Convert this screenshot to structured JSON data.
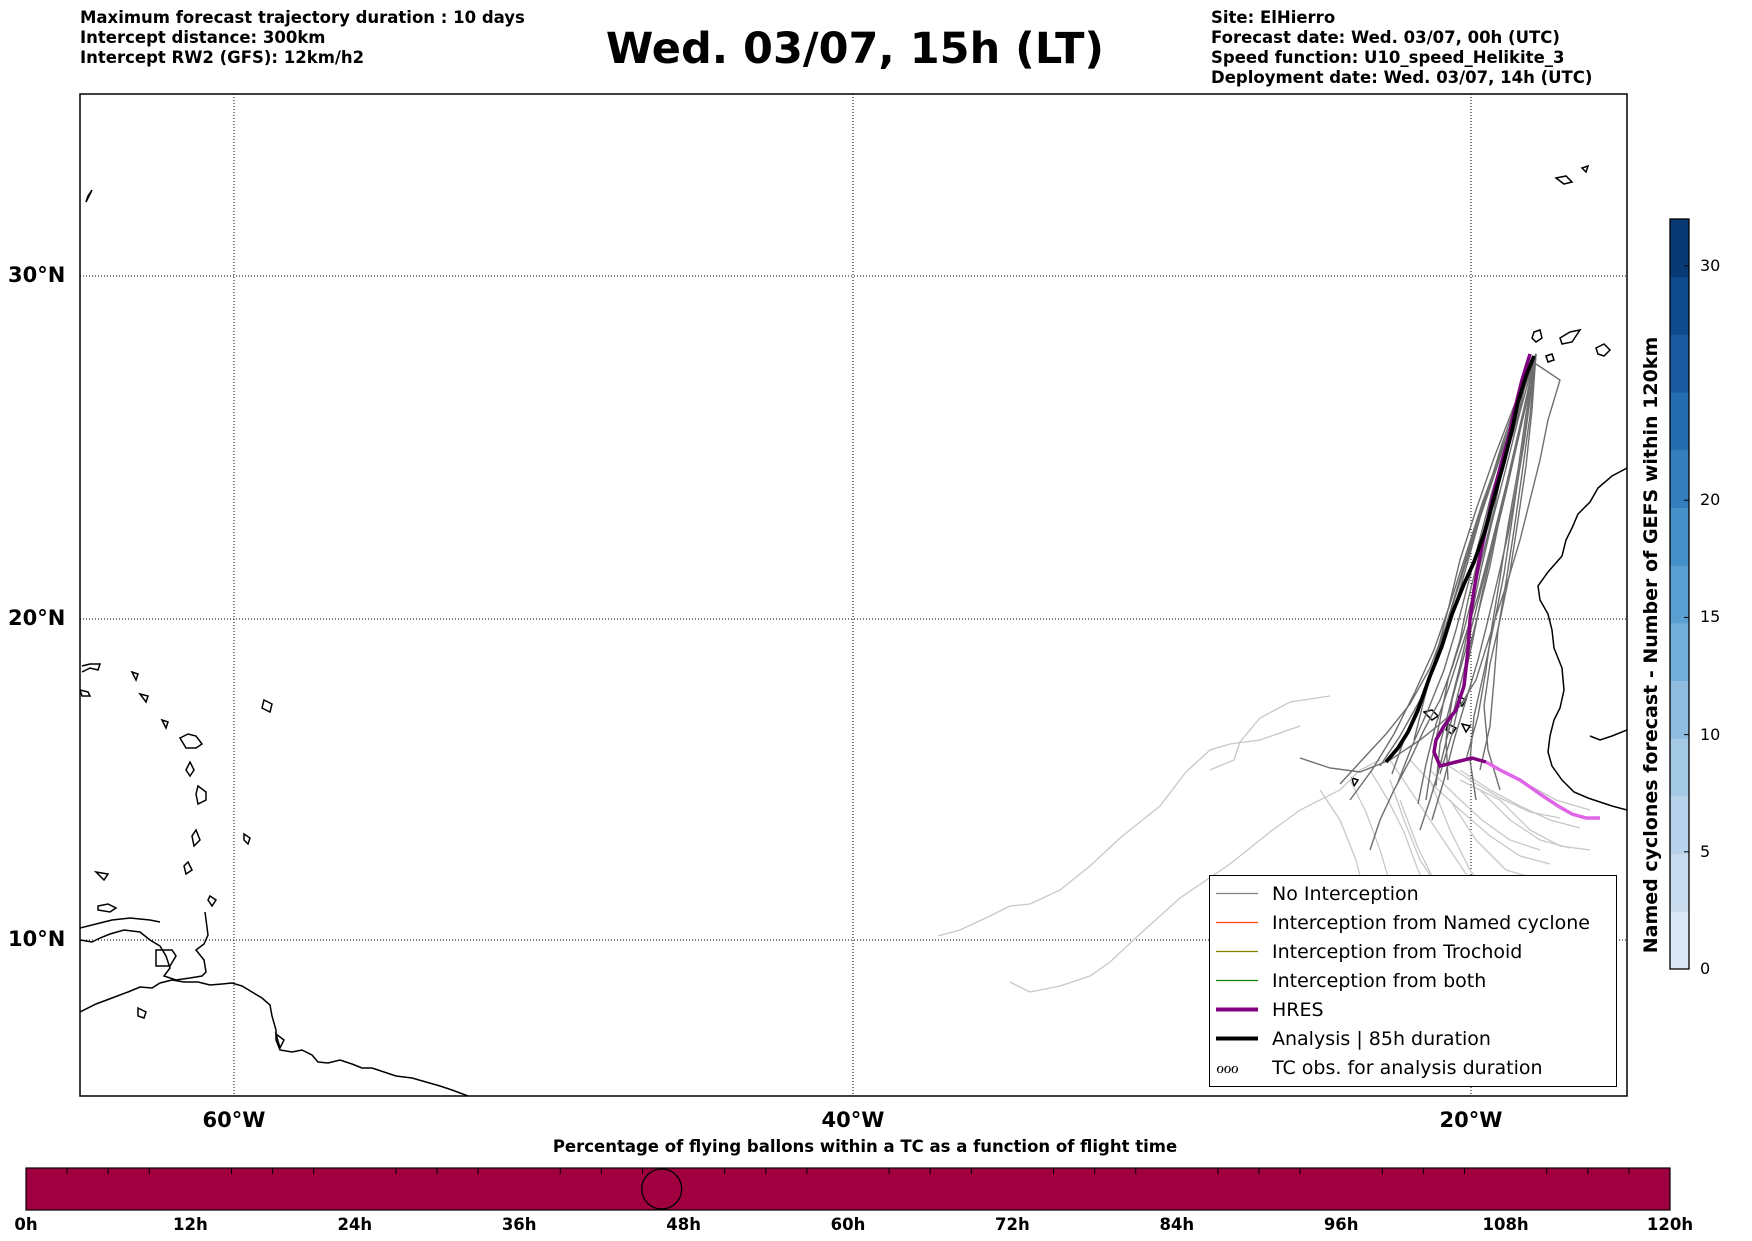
{
  "header": {
    "left_lines": [
      "Maximum forecast trajectory duration : 10 days",
      "Intercept distance: 300km",
      "Intercept RW2 (GFS):  12km/h2"
    ],
    "title": "Wed. 03/07, 15h (LT)",
    "right_lines": [
      "Site: ElHierro",
      "Forecast date: Wed. 03/07, 00h (UTC)",
      "Speed function: U10_speed_Helikite_3",
      "Deployment date: Wed. 03/07, 14h (UTC)"
    ]
  },
  "map": {
    "lat_labels": [
      "30°N",
      "20°N",
      "10°N"
    ],
    "lon_labels": [
      "60°W",
      "40°W",
      "20°W"
    ],
    "extent": {
      "lon_min": -65,
      "lon_max": -15,
      "lat_min": 5.4,
      "lat_max": 35.3
    },
    "gridlines": true,
    "colors": {
      "coastline": "#000000",
      "no_interception": "#6e6e6e",
      "light_tracks": "#c8c8c8",
      "hres": "#800080",
      "hres_late": "#e066e8",
      "analysis": "#000000"
    }
  },
  "legend": {
    "items": [
      {
        "label": "No Interception",
        "color": "#808080",
        "width": 1.2
      },
      {
        "label": "Interception from Named cyclone",
        "color": "#ff4500",
        "width": 1.2
      },
      {
        "label": "Interception from Trochoid",
        "color": "#808000",
        "width": 1.2
      },
      {
        "label": "Interception from both",
        "color": "#008000",
        "width": 1.2
      },
      {
        "label": "HRES",
        "color": "#800080",
        "width": 4
      },
      {
        "label": "Analysis | 85h duration",
        "color": "#000000",
        "width": 4
      }
    ],
    "tc_obs": {
      "symbol": "ℴℴℴ",
      "label": "TC obs. for analysis duration"
    }
  },
  "colorbar": {
    "title": "Named cyclones forecast - Number of GEFS within 120km",
    "ticks": [
      "0",
      "5",
      "10",
      "15",
      "20",
      "30"
    ],
    "tick_values": [
      0,
      5,
      10,
      15,
      20,
      30
    ],
    "max": 32,
    "colors": [
      "#dae7f5",
      "#c9dcef",
      "#b7d3eb",
      "#a5cae6",
      "#8fbde0",
      "#74afd9",
      "#5a9fd1",
      "#4590c8",
      "#357ebd",
      "#256db1",
      "#1a5ba2",
      "#0f4a8d",
      "#083a76"
    ]
  },
  "bottom_bar": {
    "title": "Percentage of flying ballons within a TC as a function of flight time",
    "ticks": [
      "0h",
      "12h",
      "24h",
      "36h",
      "48h",
      "60h",
      "72h",
      "84h",
      "96h",
      "108h",
      "120h"
    ],
    "fill_color": "#a10040",
    "current_hour": 46.4
  }
}
